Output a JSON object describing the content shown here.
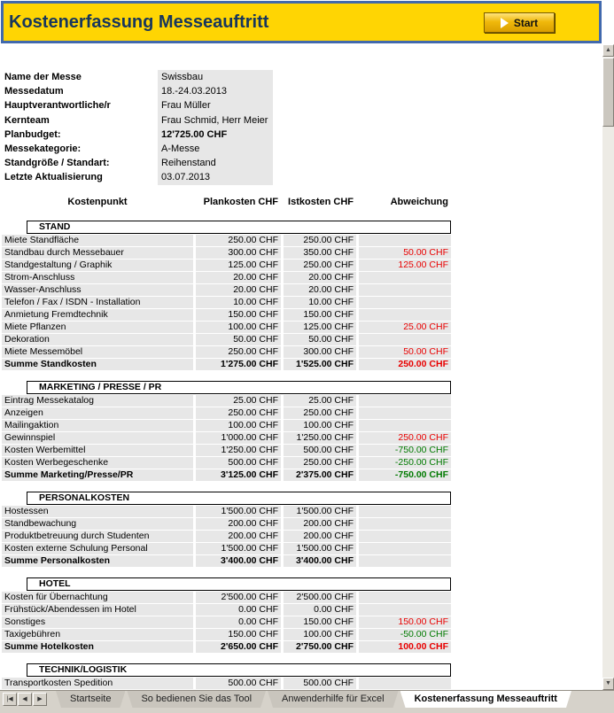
{
  "colors": {
    "header_bg": "#FFD503",
    "header_border": "#4169AD",
    "title_text": "#17365D",
    "row_bg": "#E7E7E7",
    "over_budget": "#E80000",
    "under_budget": "#007A00"
  },
  "header": {
    "title": "Kostenerfassung Messeauftritt",
    "start_label": "Start"
  },
  "info_rows": [
    {
      "label": "Name der Messe",
      "value": "Swissbau",
      "bold": false
    },
    {
      "label": "Messedatum",
      "value": "18.-24.03.2013",
      "bold": false
    },
    {
      "label": "Hauptverantwortliche/r",
      "value": "Frau Müller",
      "bold": false
    },
    {
      "label": "Kernteam",
      "value": "Frau Schmid, Herr Meier",
      "bold": false
    },
    {
      "label": "Planbudget:",
      "value": "12'725.00 CHF",
      "bold": true
    },
    {
      "label": "Messekategorie:",
      "value": "A-Messe",
      "bold": false
    },
    {
      "label": "Standgröße / Standart:",
      "value": "Reihenstand",
      "bold": false
    },
    {
      "label": "Letzte Aktualisierung",
      "value": "03.07.2013",
      "bold": false
    }
  ],
  "table": {
    "columns": [
      "Kostenpunkt",
      "Plankosten CHF",
      "Istkosten CHF",
      "Abweichung"
    ],
    "sections": [
      {
        "title": "STAND",
        "rows": [
          {
            "label": "Miete Standfläche",
            "plan": "250.00 CHF",
            "ist": "250.00 CHF",
            "abw": "",
            "color": ""
          },
          {
            "label": "Standbau durch Messebauer",
            "plan": "300.00 CHF",
            "ist": "350.00 CHF",
            "abw": "50.00 CHF",
            "color": "red"
          },
          {
            "label": "Standgestaltung / Graphik",
            "plan": "125.00 CHF",
            "ist": "250.00 CHF",
            "abw": "125.00 CHF",
            "color": "red"
          },
          {
            "label": "Strom-Anschluss",
            "plan": "20.00 CHF",
            "ist": "20.00 CHF",
            "abw": "",
            "color": ""
          },
          {
            "label": "Wasser-Anschluss",
            "plan": "20.00 CHF",
            "ist": "20.00 CHF",
            "abw": "",
            "color": ""
          },
          {
            "label": "Telefon / Fax / ISDN - Installation",
            "plan": "10.00 CHF",
            "ist": "10.00 CHF",
            "abw": "",
            "color": ""
          },
          {
            "label": "Anmietung Fremdtechnik",
            "plan": "150.00 CHF",
            "ist": "150.00 CHF",
            "abw": "",
            "color": ""
          },
          {
            "label": "Miete Pflanzen",
            "plan": "100.00 CHF",
            "ist": "125.00 CHF",
            "abw": "25.00 CHF",
            "color": "red"
          },
          {
            "label": "Dekoration",
            "plan": "50.00 CHF",
            "ist": "50.00 CHF",
            "abw": "",
            "color": ""
          },
          {
            "label": "Miete Messemöbel",
            "plan": "250.00 CHF",
            "ist": "300.00 CHF",
            "abw": "50.00 CHF",
            "color": "red"
          }
        ],
        "sum": {
          "label": "Summe Standkosten",
          "plan": "1'275.00 CHF",
          "ist": "1'525.00 CHF",
          "abw": "250.00 CHF",
          "color": "red"
        }
      },
      {
        "title": "MARKETING / PRESSE / PR",
        "rows": [
          {
            "label": "Eintrag Messekatalog",
            "plan": "25.00 CHF",
            "ist": "25.00 CHF",
            "abw": "",
            "color": ""
          },
          {
            "label": "Anzeigen",
            "plan": "250.00 CHF",
            "ist": "250.00 CHF",
            "abw": "",
            "color": ""
          },
          {
            "label": "Mailingaktion",
            "plan": "100.00 CHF",
            "ist": "100.00 CHF",
            "abw": "",
            "color": ""
          },
          {
            "label": "Gewinnspiel",
            "plan": "1'000.00 CHF",
            "ist": "1'250.00 CHF",
            "abw": "250.00 CHF",
            "color": "red"
          },
          {
            "label": "Kosten Werbemittel",
            "plan": "1'250.00 CHF",
            "ist": "500.00 CHF",
            "abw": "-750.00 CHF",
            "color": "green"
          },
          {
            "label": "Kosten Werbegeschenke",
            "plan": "500.00 CHF",
            "ist": "250.00 CHF",
            "abw": "-250.00 CHF",
            "color": "green"
          }
        ],
        "sum": {
          "label": "Summe Marketing/Presse/PR",
          "plan": "3'125.00 CHF",
          "ist": "2'375.00 CHF",
          "abw": "-750.00 CHF",
          "color": "green"
        }
      },
      {
        "title": "PERSONALKOSTEN",
        "rows": [
          {
            "label": "Hostessen",
            "plan": "1'500.00 CHF",
            "ist": "1'500.00 CHF",
            "abw": "",
            "color": ""
          },
          {
            "label": "Standbewachung",
            "plan": "200.00 CHF",
            "ist": "200.00 CHF",
            "abw": "",
            "color": ""
          },
          {
            "label": "Produktbetreuung durch Studenten",
            "plan": "200.00 CHF",
            "ist": "200.00 CHF",
            "abw": "",
            "color": ""
          },
          {
            "label": "Kosten externe Schulung Personal",
            "plan": "1'500.00 CHF",
            "ist": "1'500.00 CHF",
            "abw": "",
            "color": ""
          }
        ],
        "sum": {
          "label": "Summe Personalkosten",
          "plan": "3'400.00 CHF",
          "ist": "3'400.00 CHF",
          "abw": "",
          "color": ""
        }
      },
      {
        "title": "HOTEL",
        "rows": [
          {
            "label": "Kosten für Übernachtung",
            "plan": "2'500.00 CHF",
            "ist": "2'500.00 CHF",
            "abw": "",
            "color": ""
          },
          {
            "label": "Frühstück/Abendessen im Hotel",
            "plan": "0.00 CHF",
            "ist": "0.00 CHF",
            "abw": "",
            "color": ""
          },
          {
            "label": "Sonstiges",
            "plan": "0.00 CHF",
            "ist": "150.00 CHF",
            "abw": "150.00 CHF",
            "color": "red"
          },
          {
            "label": "Taxigebühren",
            "plan": "150.00 CHF",
            "ist": "100.00 CHF",
            "abw": "-50.00 CHF",
            "color": "green"
          }
        ],
        "sum": {
          "label": "Summe Hotelkosten",
          "plan": "2'650.00 CHF",
          "ist": "2'750.00 CHF",
          "abw": "100.00 CHF",
          "color": "red"
        }
      },
      {
        "title": "TECHNIK/LOGISTIK",
        "rows": [
          {
            "label": "Transportkosten Spedition",
            "plan": "500.00 CHF",
            "ist": "500.00 CHF",
            "abw": "",
            "color": ""
          }
        ],
        "sum": null
      }
    ]
  },
  "sheet_tabs": {
    "nav_icons": [
      "|◀",
      "◀",
      "▶"
    ],
    "tabs": [
      {
        "label": "Startseite",
        "active": false
      },
      {
        "label": "So bedienen Sie das Tool",
        "active": false
      },
      {
        "label": "Anwenderhilfe für Excel",
        "active": false
      },
      {
        "label": "Kostenerfassung Messeauftritt",
        "active": true
      }
    ]
  },
  "scrollbar": {
    "up_icon": "▲",
    "down_icon": "▼"
  }
}
